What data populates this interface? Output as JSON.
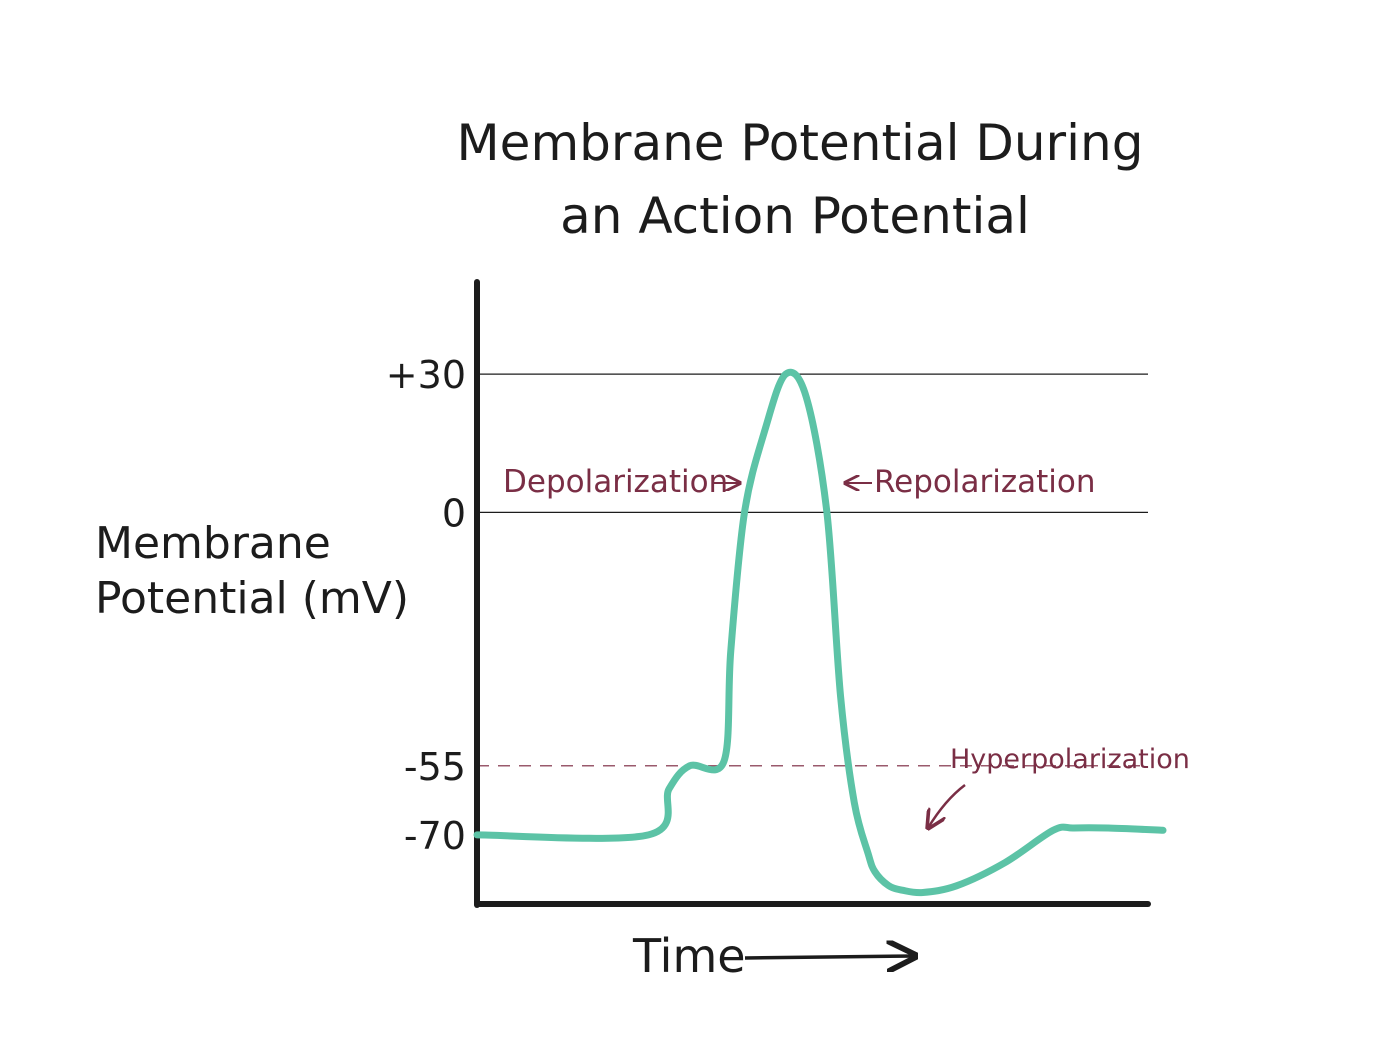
{
  "chart_data": {
    "type": "line",
    "title_lines": [
      "Membrane Potential During",
      "an Action Potential"
    ],
    "xlabel": "Time",
    "ylabel_lines": [
      "Membrane",
      "Potential (mV)"
    ],
    "y_ticks": [
      {
        "value": 30,
        "label": "+30",
        "gridline": "solid"
      },
      {
        "value": 0,
        "label": "0",
        "gridline": "solid"
      },
      {
        "value": -55,
        "label": "-55",
        "gridline": "dashed"
      },
      {
        "value": -70,
        "label": "-70",
        "gridline": "none"
      }
    ],
    "ylim": [
      -85,
      50
    ],
    "xlim": [
      0,
      100
    ],
    "series": [
      {
        "x": [
          0,
          25,
          28,
          31,
          36,
          37,
          39,
          42,
          45,
          48,
          51,
          53,
          55,
          57,
          58,
          60,
          62,
          65,
          70,
          77,
          84,
          87,
          92,
          100
        ],
        "y": [
          -70,
          -70,
          -60,
          -55,
          -54,
          -30,
          0,
          18,
          30,
          25,
          0,
          -40,
          -63,
          -74,
          -78,
          -81,
          -82,
          -82.5,
          -81,
          -76,
          -69,
          -68.5,
          -68.5,
          -69
        ]
      }
    ],
    "annotations": [
      {
        "text": "Depolarization",
        "arrow": "right"
      },
      {
        "text": "Repolarization",
        "arrow": "left"
      },
      {
        "text": "Hyperpolarization",
        "arrow": "down-left"
      }
    ],
    "grid": false,
    "legend": "none"
  },
  "colors": {
    "ink": "#1c1c1c",
    "trace": "#5cc3a6",
    "annotation": "#7a2e45",
    "threshold": "#9a5a6c"
  }
}
